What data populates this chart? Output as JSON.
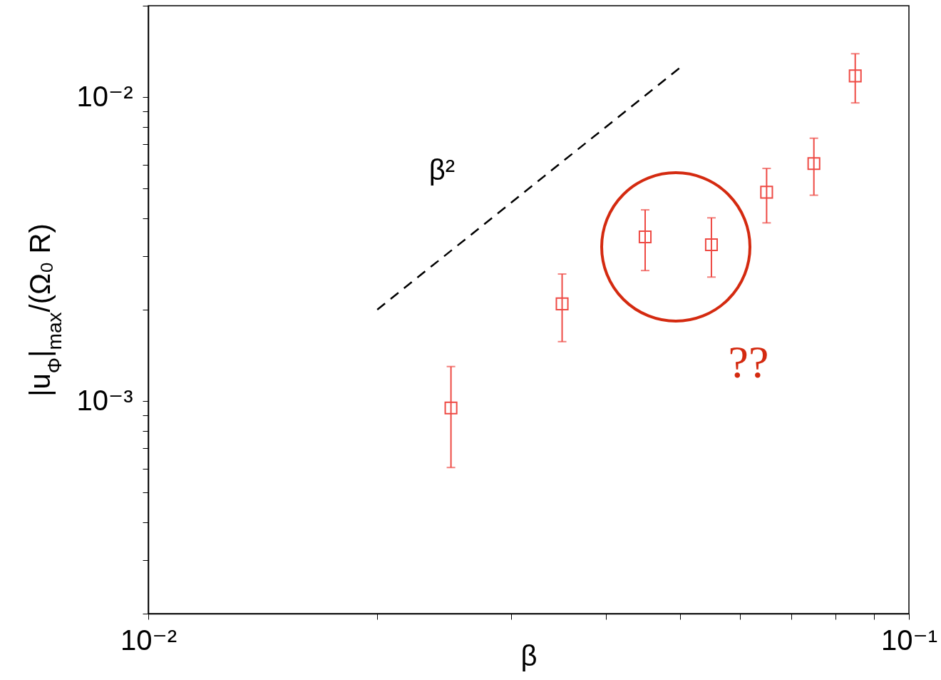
{
  "chart_data": {
    "type": "scatter",
    "xlabel": "β",
    "ylabel": "|u$_{Φ}$|$_{max}$/(Ω₀ R)",
    "log": "xy",
    "grid": false,
    "xlim": [
      0.01,
      0.1
    ],
    "ylim": [
      0.0002,
      0.02
    ],
    "xticks": [
      {
        "value": 0.01,
        "label": "10⁻²"
      },
      {
        "value": 0.02,
        "label": null
      },
      {
        "value": 0.03,
        "label": null
      },
      {
        "value": 0.04,
        "label": null
      },
      {
        "value": 0.05,
        "label": null
      },
      {
        "value": 0.06,
        "label": null
      },
      {
        "value": 0.07,
        "label": null
      },
      {
        "value": 0.08,
        "label": null
      },
      {
        "value": 0.09,
        "label": null
      },
      {
        "value": 0.1,
        "label": "10⁻¹"
      }
    ],
    "yticks": [
      {
        "value": 0.0002,
        "label": null
      },
      {
        "value": 0.0003,
        "label": null
      },
      {
        "value": 0.0004,
        "label": null
      },
      {
        "value": 0.0005,
        "label": null
      },
      {
        "value": 0.0006,
        "label": null
      },
      {
        "value": 0.0007,
        "label": null
      },
      {
        "value": 0.0008,
        "label": null
      },
      {
        "value": 0.0009,
        "label": null
      },
      {
        "value": 0.001,
        "label": "10⁻³"
      },
      {
        "value": 0.002,
        "label": null
      },
      {
        "value": 0.003,
        "label": null
      },
      {
        "value": 0.004,
        "label": null
      },
      {
        "value": 0.005,
        "label": null
      },
      {
        "value": 0.006,
        "label": null
      },
      {
        "value": 0.007,
        "label": null
      },
      {
        "value": 0.008,
        "label": null
      },
      {
        "value": 0.009,
        "label": null
      },
      {
        "value": 0.01,
        "label": "10⁻²"
      },
      {
        "value": 0.02,
        "label": null
      }
    ],
    "series": [
      {
        "color": "#ee4a44",
        "marker": "square",
        "x": [
          0.025,
          0.035,
          0.045,
          0.055,
          0.065,
          0.075,
          0.085
        ],
        "values": [
          0.00095,
          0.00209,
          0.00347,
          0.00327,
          0.00487,
          0.00605,
          0.01175
        ],
        "errors": [
          [
            0.000605,
            0.0013
          ],
          [
            0.00157,
            0.00262
          ],
          [
            0.00269,
            0.00426
          ],
          [
            0.00256,
            0.00401
          ],
          [
            0.00386,
            0.00583
          ],
          [
            0.00476,
            0.00733
          ],
          [
            0.00958,
            0.0139
          ]
        ]
      },
      {
        "type": "line",
        "color": "#000000",
        "marker": "none",
        "line_style": "dashed",
        "x": [
          0.02,
          0.05
        ],
        "values": [
          0.002,
          0.0125
        ]
      }
    ],
    "annotations": [
      "β²",
      "??"
    ]
  }
}
